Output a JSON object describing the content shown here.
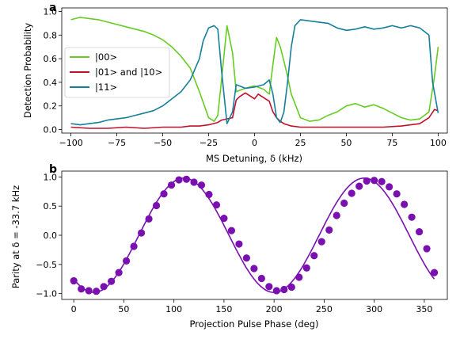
{
  "chart_data": [
    {
      "panel_label": "a",
      "type": "line",
      "xlabel": "MS Detuning, δ (kHz)",
      "ylabel": "Detection Probability",
      "xlim": [
        -105,
        105
      ],
      "ylim": [
        -0.03,
        1.03
      ],
      "xticks": [
        -100,
        -75,
        -50,
        -25,
        0,
        25,
        50,
        75,
        100
      ],
      "xtick_labels": [
        "−100",
        "−75",
        "−50",
        "−25",
        "0",
        "25",
        "50",
        "75",
        "100"
      ],
      "yticks": [
        0.0,
        0.2,
        0.4,
        0.6,
        0.8,
        1.0
      ],
      "ytick_labels": [
        "0.0",
        "0.2",
        "0.4",
        "0.6",
        "0.8",
        "1.0"
      ],
      "legend_position": "center-left",
      "series": [
        {
          "name": "|00>",
          "color": "#66cc22",
          "x": [
            -100,
            -95,
            -90,
            -85,
            -80,
            -75,
            -70,
            -65,
            -60,
            -55,
            -50,
            -45,
            -40,
            -35,
            -30,
            -25,
            -22,
            -20,
            -18,
            -15,
            -12,
            -10,
            -5,
            0,
            5,
            8,
            10,
            12,
            14,
            16,
            18,
            20,
            25,
            30,
            35,
            40,
            45,
            50,
            55,
            60,
            65,
            70,
            75,
            80,
            85,
            90,
            95,
            98,
            100
          ],
          "y": [
            0.93,
            0.95,
            0.94,
            0.93,
            0.91,
            0.89,
            0.87,
            0.85,
            0.83,
            0.8,
            0.76,
            0.7,
            0.62,
            0.52,
            0.32,
            0.1,
            0.07,
            0.12,
            0.42,
            0.88,
            0.65,
            0.32,
            0.35,
            0.37,
            0.34,
            0.3,
            0.55,
            0.78,
            0.7,
            0.58,
            0.45,
            0.3,
            0.1,
            0.07,
            0.08,
            0.12,
            0.15,
            0.2,
            0.22,
            0.19,
            0.21,
            0.18,
            0.14,
            0.1,
            0.08,
            0.09,
            0.15,
            0.45,
            0.7
          ]
        },
        {
          "name": "|01> and |10>",
          "color": "#c0102a",
          "x": [
            -100,
            -90,
            -80,
            -70,
            -60,
            -50,
            -40,
            -35,
            -30,
            -25,
            -20,
            -18,
            -15,
            -12,
            -10,
            -8,
            -5,
            -2,
            0,
            2,
            5,
            8,
            10,
            12,
            14,
            16,
            20,
            25,
            30,
            40,
            50,
            60,
            70,
            80,
            90,
            95,
            98,
            100
          ],
          "y": [
            0.02,
            0.01,
            0.01,
            0.02,
            0.01,
            0.02,
            0.02,
            0.03,
            0.03,
            0.04,
            0.06,
            0.08,
            0.09,
            0.1,
            0.25,
            0.28,
            0.31,
            0.28,
            0.26,
            0.3,
            0.27,
            0.24,
            0.15,
            0.1,
            0.07,
            0.05,
            0.03,
            0.02,
            0.02,
            0.02,
            0.02,
            0.02,
            0.02,
            0.03,
            0.05,
            0.1,
            0.17,
            0.16
          ]
        },
        {
          "name": "|11>",
          "color": "#167f9a",
          "x": [
            -100,
            -95,
            -90,
            -85,
            -80,
            -75,
            -70,
            -65,
            -60,
            -55,
            -50,
            -45,
            -40,
            -35,
            -30,
            -28,
            -25,
            -22,
            -20,
            -18,
            -15,
            -12,
            -10,
            -5,
            0,
            5,
            8,
            10,
            12,
            14,
            16,
            18,
            20,
            22,
            25,
            30,
            35,
            40,
            45,
            50,
            55,
            60,
            65,
            70,
            75,
            80,
            85,
            90,
            95,
            97,
            100
          ],
          "y": [
            0.05,
            0.04,
            0.05,
            0.06,
            0.08,
            0.09,
            0.1,
            0.12,
            0.14,
            0.16,
            0.2,
            0.26,
            0.32,
            0.42,
            0.6,
            0.75,
            0.86,
            0.88,
            0.85,
            0.5,
            0.05,
            0.15,
            0.38,
            0.35,
            0.36,
            0.38,
            0.42,
            0.3,
            0.1,
            0.06,
            0.15,
            0.4,
            0.7,
            0.88,
            0.93,
            0.92,
            0.91,
            0.9,
            0.86,
            0.84,
            0.85,
            0.87,
            0.85,
            0.86,
            0.88,
            0.86,
            0.88,
            0.86,
            0.8,
            0.4,
            0.14
          ]
        }
      ]
    },
    {
      "panel_label": "b",
      "type": "scatter",
      "xlabel": "Projection Pulse Phase (deg)",
      "ylabel": "Parity at δ = -33.7 kHz",
      "xlim": [
        -12,
        373
      ],
      "ylim": [
        -1.1,
        1.1
      ],
      "xticks": [
        0,
        50,
        100,
        150,
        200,
        250,
        300,
        350
      ],
      "xtick_labels": [
        "0",
        "50",
        "100",
        "150",
        "200",
        "250",
        "300",
        "350"
      ],
      "yticks": [
        -1.0,
        -0.5,
        0.0,
        0.5,
        1.0
      ],
      "ytick_labels": [
        "−1.0",
        "−0.5",
        "0.0",
        "0.5",
        "1.0"
      ],
      "color": "#7a10b0",
      "series": [
        {
          "points_x": [
            0,
            7.5,
            15,
            22.5,
            30,
            37.5,
            45,
            52.5,
            60,
            67.5,
            75,
            82.5,
            90,
            97.5,
            105,
            112.5,
            120,
            127.5,
            135,
            142.5,
            150,
            157.5,
            165,
            172.5,
            180,
            187.5,
            195,
            202.5,
            210,
            217.5,
            225,
            232.5,
            240,
            247.5,
            255,
            262.5,
            270,
            277.5,
            285,
            292.5,
            300,
            307.5,
            315,
            322.5,
            330,
            337.5,
            345,
            352.5,
            360
          ],
          "points_y": [
            -0.78,
            -0.92,
            -0.95,
            -0.96,
            -0.88,
            -0.79,
            -0.64,
            -0.44,
            -0.19,
            0.04,
            0.28,
            0.51,
            0.71,
            0.86,
            0.95,
            0.96,
            0.91,
            0.86,
            0.7,
            0.52,
            0.29,
            0.08,
            -0.15,
            -0.39,
            -0.57,
            -0.74,
            -0.88,
            -0.95,
            -0.93,
            -0.89,
            -0.72,
            -0.56,
            -0.35,
            -0.11,
            0.09,
            0.34,
            0.55,
            0.72,
            0.84,
            0.93,
            0.94,
            0.92,
            0.83,
            0.71,
            0.53,
            0.31,
            0.06,
            -0.23,
            -0.64
          ],
          "fit_amplitude": 0.98,
          "fit_period_deg": 180,
          "fit_peak_deg": 110
        }
      ]
    }
  ]
}
